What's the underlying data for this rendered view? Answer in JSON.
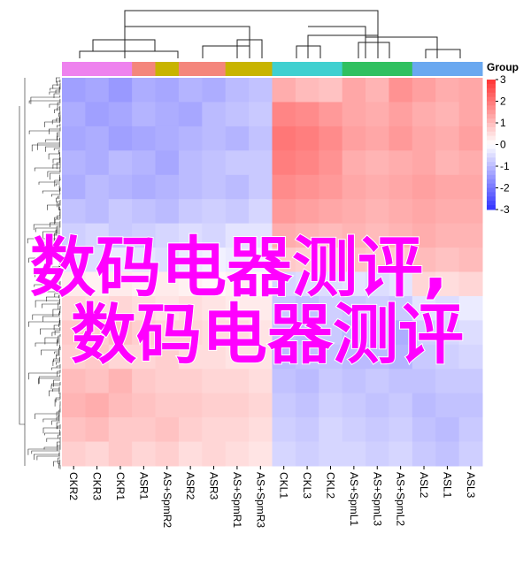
{
  "chart_data": {
    "type": "heatmap",
    "categories": [
      "CKR2",
      "CKR3",
      "CKR1",
      "ASR1",
      "AS+SpmR2",
      "ASR2",
      "ASR3",
      "AS+SpmR1",
      "AS+SpmR3",
      "CKL1",
      "CKL3",
      "CKL2",
      "AS+SpmL1",
      "AS+SpmL3",
      "AS+SpmL2",
      "ASL2",
      "ASL1",
      "ASL3"
    ],
    "group_colors": [
      "#ee82ee",
      "#ee82ee",
      "#ee82ee",
      "#f4867c",
      "#c8b400",
      "#f4867c",
      "#f4867c",
      "#c8b400",
      "#c8b400",
      "#40d0d0",
      "#40d0d0",
      "#40d0d0",
      "#30c060",
      "#30c060",
      "#30c060",
      "#6aa8f0",
      "#6aa8f0",
      "#6aa8f0"
    ],
    "legend_title": "Group",
    "values": [
      [
        -1.4,
        -1.3,
        -1.5,
        -1.2,
        -1.3,
        -1.1,
        -1.2,
        -1.0,
        -0.9,
        1.2,
        1.0,
        0.9,
        1.3,
        1.1,
        1.6,
        1.4,
        1.2,
        1.3
      ],
      [
        -1.2,
        -1.4,
        -1.3,
        -1.1,
        -1.2,
        -1.3,
        -1.0,
        -0.9,
        -0.8,
        1.8,
        1.7,
        1.5,
        1.3,
        1.2,
        1.4,
        1.2,
        1.1,
        1.3
      ],
      [
        -1.3,
        -1.2,
        -1.4,
        -1.3,
        -1.2,
        -1.1,
        -1.0,
        -1.1,
        -0.9,
        2.0,
        1.9,
        1.7,
        1.4,
        1.3,
        1.5,
        1.3,
        1.2,
        1.4
      ],
      [
        -1.1,
        -1.2,
        -1.0,
        -1.1,
        -1.3,
        -1.0,
        -0.9,
        -0.8,
        -0.8,
        1.9,
        1.8,
        1.6,
        1.2,
        1.1,
        1.2,
        1.3,
        1.1,
        1.2
      ],
      [
        -1.2,
        -1.0,
        -1.1,
        -1.2,
        -1.1,
        -1.0,
        -0.9,
        -1.0,
        -0.8,
        1.7,
        1.6,
        1.5,
        1.3,
        1.2,
        1.3,
        1.4,
        1.3,
        1.3
      ],
      [
        -0.9,
        -1.0,
        -0.8,
        -0.9,
        -1.0,
        -0.8,
        -0.7,
        -0.8,
        -0.6,
        1.5,
        1.4,
        1.3,
        1.2,
        1.1,
        1.2,
        1.3,
        1.2,
        1.2
      ],
      [
        -0.7,
        -0.6,
        -0.8,
        -0.7,
        -0.6,
        -0.5,
        -0.6,
        -0.4,
        -0.4,
        1.2,
        1.1,
        1.0,
        1.1,
        1.0,
        1.1,
        1.2,
        1.1,
        1.1
      ],
      [
        -0.4,
        -0.5,
        -0.3,
        -0.4,
        -0.5,
        -0.3,
        -0.2,
        -0.3,
        -0.2,
        0.8,
        0.7,
        0.6,
        0.9,
        0.8,
        0.8,
        1.0,
        0.9,
        1.0
      ],
      [
        0.3,
        0.2,
        0.3,
        0.2,
        0.3,
        0.2,
        0.1,
        0.2,
        0.1,
        -0.6,
        -0.5,
        -0.5,
        -0.4,
        -0.5,
        -0.4,
        0.6,
        0.5,
        0.6
      ],
      [
        0.6,
        0.5,
        0.6,
        0.5,
        0.4,
        0.5,
        0.4,
        0.3,
        0.3,
        -0.8,
        -0.9,
        -0.7,
        -0.8,
        -0.7,
        -0.8,
        -0.4,
        -0.5,
        -0.3
      ],
      [
        0.8,
        0.7,
        0.9,
        0.7,
        0.6,
        0.6,
        0.5,
        0.5,
        0.4,
        -0.9,
        -1.0,
        -0.8,
        -1.0,
        -0.9,
        -1.2,
        -0.7,
        -0.6,
        -0.5
      ],
      [
        0.7,
        0.8,
        0.6,
        0.6,
        0.7,
        0.5,
        0.5,
        0.4,
        0.4,
        -1.0,
        -0.9,
        -0.9,
        -1.0,
        -1.0,
        -1.1,
        -0.8,
        -0.7,
        -0.6
      ],
      [
        1.0,
        0.9,
        1.1,
        0.8,
        0.7,
        0.7,
        0.6,
        0.6,
        0.5,
        -0.9,
        -1.0,
        -0.8,
        -0.9,
        -0.8,
        -0.9,
        -0.9,
        -0.8,
        -0.8
      ],
      [
        1.1,
        1.2,
        1.0,
        0.9,
        0.8,
        0.8,
        0.7,
        0.7,
        0.6,
        -0.8,
        -0.9,
        -0.7,
        -0.8,
        -0.9,
        -0.8,
        -1.0,
        -0.9,
        -0.9
      ],
      [
        0.9,
        1.0,
        0.8,
        0.8,
        0.9,
        0.7,
        0.6,
        0.6,
        0.5,
        -0.7,
        -0.8,
        -0.6,
        -0.7,
        -0.8,
        -0.7,
        -0.9,
        -1.0,
        -0.8
      ],
      [
        0.7,
        0.6,
        0.8,
        0.6,
        0.7,
        0.5,
        0.6,
        0.5,
        0.4,
        -0.6,
        -0.7,
        -0.6,
        -0.6,
        -0.7,
        -0.6,
        -0.8,
        -0.9,
        -0.7
      ]
    ],
    "clim": [
      -3,
      3
    ],
    "colorbar_ticks": [
      3,
      2,
      1,
      0,
      -1,
      -2,
      -3
    ],
    "colors": {
      "low": "#0000ff",
      "mid": "#ffffff",
      "high": "#ff0000"
    },
    "overlay_lines": [
      "数码电器测评,",
      "数码电器测评"
    ]
  }
}
